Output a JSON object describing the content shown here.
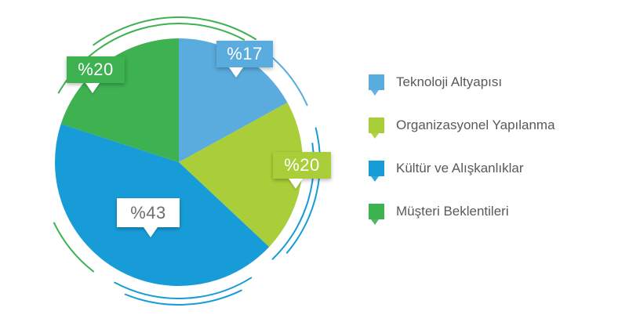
{
  "chart_data": {
    "type": "pie",
    "title": "",
    "legend_position": "right",
    "start_angle_deg": -90,
    "direction": "clockwise",
    "slices": [
      {
        "label": "Teknoloji Altyapısı",
        "value": 17,
        "display": "%17",
        "color": "#5aabde"
      },
      {
        "label": "Organizasyonel Yapılanma",
        "value": 20,
        "display": "%20",
        "color": "#a9ce39"
      },
      {
        "label": "Kültür ve Alışkanlıklar",
        "value": 43,
        "display": "%43",
        "color": "#189cd8"
      },
      {
        "label": "Müşteri Beklentileri",
        "value": 20,
        "display": "%20",
        "color": "#3eb151"
      }
    ]
  },
  "callouts": [
    {
      "bg": "#5aabde",
      "fg": "#ffffff"
    },
    {
      "bg": "#a9ce39",
      "fg": "#ffffff"
    },
    {
      "bg": "#ffffff",
      "fg": "#6d6e71"
    },
    {
      "bg": "#3eb151",
      "fg": "#ffffff"
    }
  ],
  "colors": {
    "background": "#ffffff",
    "legend_text": "#58595b"
  }
}
